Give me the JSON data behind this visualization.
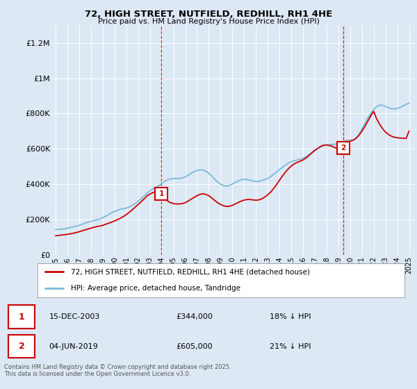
{
  "title": "72, HIGH STREET, NUTFIELD, REDHILL, RH1 4HE",
  "subtitle": "Price paid vs. HM Land Registry's House Price Index (HPI)",
  "ylabel_ticks": [
    "£0",
    "£200K",
    "£400K",
    "£600K",
    "£800K",
    "£1M",
    "£1.2M"
  ],
  "ytick_values": [
    0,
    200000,
    400000,
    600000,
    800000,
    1000000,
    1200000
  ],
  "ylim": [
    0,
    1300000
  ],
  "xlim_start": 1994.7,
  "xlim_end": 2025.5,
  "xticks": [
    1995,
    1996,
    1997,
    1998,
    1999,
    2000,
    2001,
    2002,
    2003,
    2004,
    2005,
    2006,
    2007,
    2008,
    2009,
    2010,
    2011,
    2012,
    2013,
    2014,
    2015,
    2016,
    2017,
    2018,
    2019,
    2020,
    2021,
    2022,
    2023,
    2024,
    2025
  ],
  "sale1_x": 2003.96,
  "sale1_y": 344000,
  "sale1_label": "1",
  "sale1_date": "15-DEC-2003",
  "sale1_price": "£344,000",
  "sale1_pct": "18% ↓ HPI",
  "sale2_x": 2019.42,
  "sale2_y": 605000,
  "sale2_label": "2",
  "sale2_date": "04-JUN-2019",
  "sale2_price": "£605,000",
  "sale2_pct": "21% ↓ HPI",
  "hpi_color": "#7ab8d9",
  "sale_color": "#cc0000",
  "dashed_line_color": "#cc0000",
  "fig_bg_color": "#dce8f4",
  "plot_bg_color": "#dce8f4",
  "grid_color": "#ffffff",
  "legend_label_red": "72, HIGH STREET, NUTFIELD, REDHILL, RH1 4HE (detached house)",
  "legend_label_blue": "HPI: Average price, detached house, Tandridge",
  "footer": "Contains HM Land Registry data © Crown copyright and database right 2025.\nThis data is licensed under the Open Government Licence v3.0.",
  "hpi_data_x": [
    1995.0,
    1995.25,
    1995.5,
    1995.75,
    1996.0,
    1996.25,
    1996.5,
    1996.75,
    1997.0,
    1997.25,
    1997.5,
    1997.75,
    1998.0,
    1998.25,
    1998.5,
    1998.75,
    1999.0,
    1999.25,
    1999.5,
    1999.75,
    2000.0,
    2000.25,
    2000.5,
    2000.75,
    2001.0,
    2001.25,
    2001.5,
    2001.75,
    2002.0,
    2002.25,
    2002.5,
    2002.75,
    2003.0,
    2003.25,
    2003.5,
    2003.75,
    2004.0,
    2004.25,
    2004.5,
    2004.75,
    2005.0,
    2005.25,
    2005.5,
    2005.75,
    2006.0,
    2006.25,
    2006.5,
    2006.75,
    2007.0,
    2007.25,
    2007.5,
    2007.75,
    2008.0,
    2008.25,
    2008.5,
    2008.75,
    2009.0,
    2009.25,
    2009.5,
    2009.75,
    2010.0,
    2010.25,
    2010.5,
    2010.75,
    2011.0,
    2011.25,
    2011.5,
    2011.75,
    2012.0,
    2012.25,
    2012.5,
    2012.75,
    2013.0,
    2013.25,
    2013.5,
    2013.75,
    2014.0,
    2014.25,
    2014.5,
    2014.75,
    2015.0,
    2015.25,
    2015.5,
    2015.75,
    2016.0,
    2016.25,
    2016.5,
    2016.75,
    2017.0,
    2017.25,
    2017.5,
    2017.75,
    2018.0,
    2018.25,
    2018.5,
    2018.75,
    2019.0,
    2019.25,
    2019.5,
    2019.75,
    2020.0,
    2020.25,
    2020.5,
    2020.75,
    2021.0,
    2021.25,
    2021.5,
    2021.75,
    2022.0,
    2022.25,
    2022.5,
    2022.75,
    2023.0,
    2023.25,
    2023.5,
    2023.75,
    2024.0,
    2024.25,
    2024.5,
    2024.75,
    2025.0
  ],
  "hpi_data_y": [
    143000,
    144000,
    145000,
    147000,
    150000,
    154000,
    158000,
    162000,
    167000,
    173000,
    179000,
    185000,
    190000,
    194000,
    198000,
    203000,
    210000,
    219000,
    229000,
    238000,
    246000,
    252000,
    257000,
    261000,
    265000,
    271000,
    280000,
    291000,
    303000,
    317000,
    333000,
    349000,
    362000,
    373000,
    383000,
    391000,
    404000,
    416000,
    425000,
    430000,
    432000,
    432000,
    432000,
    435000,
    441000,
    451000,
    462000,
    471000,
    477000,
    481000,
    480000,
    473000,
    462000,
    446000,
    428000,
    412000,
    400000,
    392000,
    389000,
    393000,
    401000,
    410000,
    419000,
    425000,
    427000,
    426000,
    422000,
    418000,
    415000,
    416000,
    420000,
    426000,
    433000,
    443000,
    456000,
    469000,
    482000,
    495000,
    508000,
    519000,
    527000,
    533000,
    537000,
    541000,
    547000,
    556000,
    567000,
    579000,
    591000,
    602000,
    611000,
    618000,
    622000,
    624000,
    625000,
    627000,
    631000,
    637000,
    643000,
    648000,
    650000,
    649000,
    659000,
    682000,
    712000,
    744000,
    774000,
    800000,
    822000,
    840000,
    848000,
    847000,
    840000,
    833000,
    828000,
    826000,
    829000,
    835000,
    843000,
    852000,
    860000
  ],
  "sale_data_x": [
    1995.0,
    1995.25,
    1995.5,
    1995.75,
    1996.0,
    1996.25,
    1996.5,
    1996.75,
    1997.0,
    1997.25,
    1997.5,
    1997.75,
    1998.0,
    1998.25,
    1998.5,
    1998.75,
    1999.0,
    1999.25,
    1999.5,
    1999.75,
    2000.0,
    2000.25,
    2000.5,
    2000.75,
    2001.0,
    2001.25,
    2001.5,
    2001.75,
    2002.0,
    2002.25,
    2002.5,
    2002.75,
    2003.0,
    2003.25,
    2003.5,
    2003.75,
    2003.96,
    2004.25,
    2004.5,
    2004.75,
    2005.0,
    2005.25,
    2005.5,
    2005.75,
    2006.0,
    2006.25,
    2006.5,
    2006.75,
    2007.0,
    2007.25,
    2007.5,
    2007.75,
    2008.0,
    2008.25,
    2008.5,
    2008.75,
    2009.0,
    2009.25,
    2009.5,
    2009.75,
    2010.0,
    2010.25,
    2010.5,
    2010.75,
    2011.0,
    2011.25,
    2011.5,
    2011.75,
    2012.0,
    2012.25,
    2012.5,
    2012.75,
    2013.0,
    2013.25,
    2013.5,
    2013.75,
    2014.0,
    2014.25,
    2014.5,
    2014.75,
    2015.0,
    2015.25,
    2015.5,
    2015.75,
    2016.0,
    2016.25,
    2016.5,
    2016.75,
    2017.0,
    2017.25,
    2017.5,
    2017.75,
    2018.0,
    2018.25,
    2018.5,
    2018.75,
    2019.0,
    2019.25,
    2019.42,
    2019.75,
    2020.0,
    2020.25,
    2020.5,
    2020.75,
    2021.0,
    2021.25,
    2021.5,
    2021.75,
    2022.0,
    2022.25,
    2022.5,
    2022.75,
    2023.0,
    2023.25,
    2023.5,
    2023.75,
    2024.0,
    2024.25,
    2024.5,
    2024.75,
    2025.0
  ],
  "sale_data_y": [
    108000,
    110000,
    112000,
    114000,
    116000,
    119000,
    122000,
    126000,
    131000,
    136000,
    141000,
    146000,
    151000,
    156000,
    160000,
    163000,
    167000,
    173000,
    179000,
    185000,
    192000,
    199000,
    207000,
    217000,
    228000,
    241000,
    255000,
    270000,
    285000,
    300000,
    316000,
    333000,
    344000,
    352000,
    358000,
    363000,
    344000,
    320000,
    305000,
    295000,
    290000,
    288000,
    288000,
    290000,
    295000,
    305000,
    315000,
    325000,
    335000,
    342000,
    346000,
    342000,
    335000,
    322000,
    308000,
    295000,
    285000,
    278000,
    274000,
    275000,
    280000,
    288000,
    296000,
    304000,
    310000,
    313000,
    313000,
    311000,
    309000,
    311000,
    317000,
    327000,
    340000,
    355000,
    375000,
    398000,
    422000,
    446000,
    468000,
    487000,
    503000,
    515000,
    523000,
    530000,
    537000,
    548000,
    562000,
    577000,
    592000,
    603000,
    614000,
    621000,
    622000,
    619000,
    614000,
    605000,
    605000,
    615000,
    625000,
    636000,
    643000,
    649000,
    660000,
    677000,
    700000,
    727000,
    757000,
    787000,
    812000,
    770000,
    740000,
    715000,
    695000,
    682000,
    672000,
    666000,
    663000,
    661000,
    660000,
    659000,
    700000
  ]
}
